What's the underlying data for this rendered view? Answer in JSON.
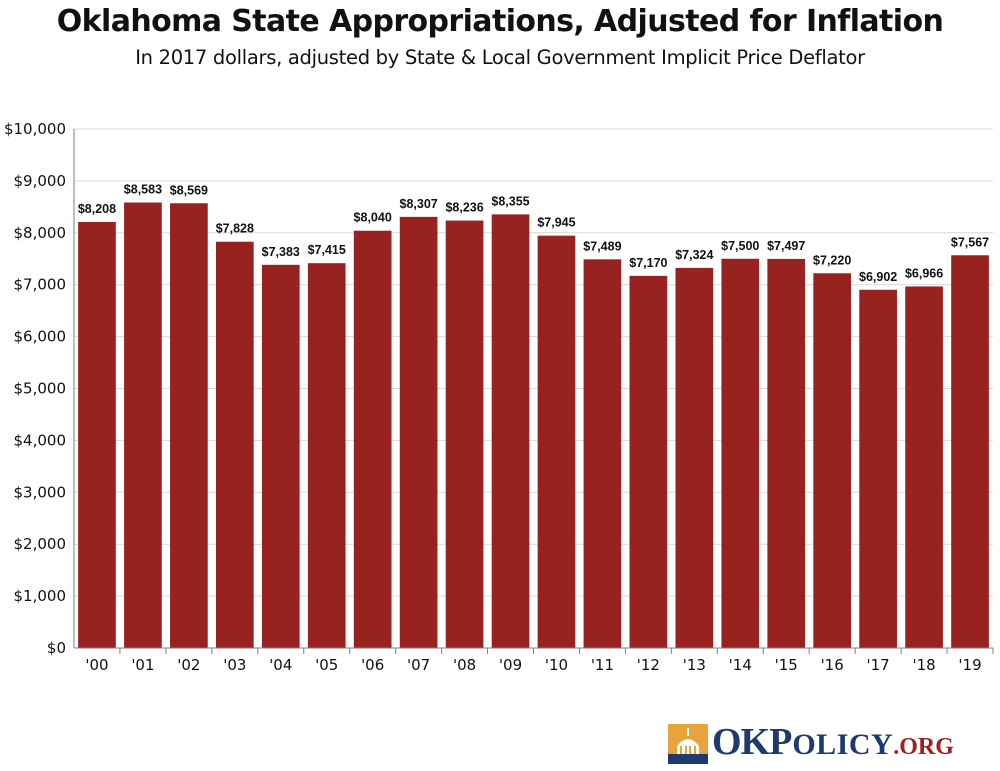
{
  "chart_data": {
    "type": "bar",
    "title": "Oklahoma State Appropriations, Adjusted for Inflation",
    "subtitle": "In 2017 dollars, adjusted by State & Local Government Implicit Price Deflator",
    "categories": [
      "'00",
      "'01",
      "'02",
      "'03",
      "'04",
      "'05",
      "'06",
      "'07",
      "'08",
      "'09",
      "'10",
      "'11",
      "'12",
      "'13",
      "'14",
      "'15",
      "'16",
      "'17",
      "'18",
      "'19"
    ],
    "values": [
      8208,
      8583,
      8569,
      7828,
      7383,
      7415,
      8040,
      8307,
      8236,
      8355,
      7945,
      7489,
      7170,
      7324,
      7500,
      7497,
      7220,
      6902,
      6966,
      7567
    ],
    "value_labels": [
      "$8,208",
      "$8,583",
      "$8,569",
      "$7,828",
      "$7,383",
      "$7,415",
      "$8,040",
      "$8,307",
      "$8,236",
      "$8,355",
      "$7,945",
      "$7,489",
      "$7,170",
      "$7,324",
      "$7,500",
      "$7,497",
      "$7,220",
      "$6,902",
      "$6,966",
      "$7,567"
    ],
    "ylim": [
      0,
      10000
    ],
    "yticks": [
      0,
      1000,
      2000,
      3000,
      4000,
      5000,
      6000,
      7000,
      8000,
      9000,
      10000
    ],
    "ytick_labels": [
      "$0",
      "$1,000",
      "$2,000",
      "$3,000",
      "$4,000",
      "$5,000",
      "$6,000",
      "$7,000",
      "$8,000",
      "$9,000",
      "$10,000"
    ],
    "xlabel": "",
    "ylabel": "",
    "grid": true,
    "bar_color": "#97221f",
    "grid_color": "#d9d9d9",
    "legend": false
  },
  "logo": {
    "text_ok": "OK",
    "text_p": "P",
    "text_olicy": "OLICY",
    "text_org": ".ORG",
    "colors": {
      "navy": "#1f3a6e",
      "red": "#a01f1f",
      "gold": "#e8a33a"
    }
  }
}
